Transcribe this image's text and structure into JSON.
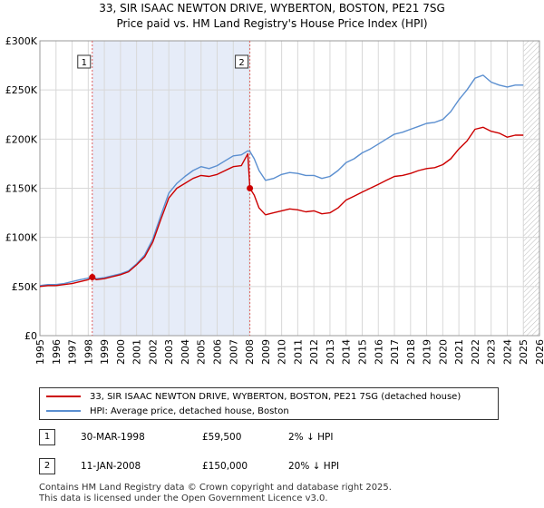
{
  "chart_data": {
    "type": "line",
    "title": "33, SIR ISAAC NEWTON DRIVE, WYBERTON, BOSTON, PE21 7SG",
    "subtitle": "Price paid vs. HM Land Registry's House Price Index (HPI)",
    "xlabel": "",
    "ylabel": "",
    "xlim": [
      1995,
      2026
    ],
    "ylim": [
      0,
      300000
    ],
    "x_ticks": [
      "1995",
      "1996",
      "1997",
      "1998",
      "1999",
      "2000",
      "2001",
      "2002",
      "2003",
      "2004",
      "2005",
      "2006",
      "2007",
      "2008",
      "2009",
      "2010",
      "2011",
      "2012",
      "2013",
      "2014",
      "2015",
      "2016",
      "2017",
      "2018",
      "2019",
      "2020",
      "2021",
      "2022",
      "2023",
      "2024",
      "2025",
      "2026"
    ],
    "y_ticks": [
      {
        "value": 0,
        "label": "£0"
      },
      {
        "value": 50000,
        "label": "£50K"
      },
      {
        "value": 100000,
        "label": "£100K"
      },
      {
        "value": 150000,
        "label": "£150K"
      },
      {
        "value": 200000,
        "label": "£200K"
      },
      {
        "value": 250000,
        "label": "£250K"
      },
      {
        "value": 300000,
        "label": "£300K"
      }
    ],
    "grid": true,
    "shaded_span": {
      "from": 1998.25,
      "to": 2008.03
    },
    "forecast_hatch_from": 2025.0,
    "series": [
      {
        "name": "33, SIR ISAAC NEWTON DRIVE, WYBERTON, BOSTON, PE21 7SG (detached house)",
        "color": "#cc0000",
        "x": [
          1995.0,
          1995.5,
          1996.0,
          1996.5,
          1997.0,
          1997.5,
          1998.0,
          1998.25,
          1998.5,
          1999.0,
          1999.5,
          2000.0,
          2000.5,
          2001.0,
          2001.5,
          2002.0,
          2002.5,
          2003.0,
          2003.5,
          2004.0,
          2004.5,
          2005.0,
          2005.5,
          2006.0,
          2006.5,
          2007.0,
          2007.5,
          2007.9,
          2008.03,
          2008.3,
          2008.6,
          2009.0,
          2009.5,
          2010.0,
          2010.5,
          2011.0,
          2011.5,
          2012.0,
          2012.5,
          2013.0,
          2013.5,
          2014.0,
          2014.5,
          2015.0,
          2015.5,
          2016.0,
          2016.5,
          2017.0,
          2017.5,
          2018.0,
          2018.5,
          2019.0,
          2019.5,
          2020.0,
          2020.5,
          2021.0,
          2021.5,
          2022.0,
          2022.5,
          2023.0,
          2023.5,
          2024.0,
          2024.5,
          2025.0
        ],
        "values": [
          50000,
          51000,
          51000,
          52000,
          53000,
          55000,
          57000,
          59500,
          57000,
          58000,
          60000,
          62000,
          65000,
          72000,
          80000,
          95000,
          118000,
          140000,
          150000,
          155000,
          160000,
          163000,
          162000,
          164000,
          168000,
          172000,
          173000,
          185000,
          150000,
          143000,
          130000,
          123000,
          125000,
          127000,
          129000,
          128000,
          126000,
          127000,
          124000,
          125000,
          130000,
          138000,
          142000,
          146000,
          150000,
          154000,
          158000,
          162000,
          163000,
          165000,
          168000,
          170000,
          171000,
          174000,
          180000,
          190000,
          198000,
          210000,
          212000,
          208000,
          206000,
          202000,
          204000,
          204000
        ]
      },
      {
        "name": "HPI: Average price, detached house, Boston",
        "color": "#5b8fd0",
        "x": [
          1995.0,
          1995.5,
          1996.0,
          1996.5,
          1997.0,
          1997.5,
          1998.0,
          1998.25,
          1998.5,
          1999.0,
          1999.5,
          2000.0,
          2000.5,
          2001.0,
          2001.5,
          2002.0,
          2002.5,
          2003.0,
          2003.5,
          2004.0,
          2004.5,
          2005.0,
          2005.5,
          2006.0,
          2006.5,
          2007.0,
          2007.5,
          2007.9,
          2008.03,
          2008.3,
          2008.6,
          2009.0,
          2009.5,
          2010.0,
          2010.5,
          2011.0,
          2011.5,
          2012.0,
          2012.5,
          2013.0,
          2013.5,
          2014.0,
          2014.5,
          2015.0,
          2015.5,
          2016.0,
          2016.5,
          2017.0,
          2017.5,
          2018.0,
          2018.5,
          2019.0,
          2019.5,
          2020.0,
          2020.5,
          2021.0,
          2021.5,
          2022.0,
          2022.5,
          2023.0,
          2023.5,
          2024.0,
          2024.5,
          2025.0
        ],
        "values": [
          51000,
          52000,
          52000,
          53000,
          55000,
          57000,
          58500,
          60700,
          58000,
          59000,
          61000,
          63000,
          66000,
          73000,
          82000,
          98000,
          122000,
          145000,
          155000,
          162000,
          168000,
          172000,
          170000,
          173000,
          178000,
          183000,
          184000,
          188000,
          187500,
          180000,
          168000,
          158000,
          160000,
          164000,
          166000,
          165000,
          163000,
          163000,
          160000,
          162000,
          168000,
          176000,
          180000,
          186000,
          190000,
          195000,
          200000,
          205000,
          207000,
          210000,
          213000,
          216000,
          217000,
          220000,
          228000,
          240000,
          250000,
          262000,
          265000,
          258000,
          255000,
          253000,
          255000,
          255000
        ]
      }
    ],
    "markers": [
      {
        "label": "1",
        "x": 1998.25,
        "value": 59500
      },
      {
        "label": "2",
        "x": 2008.03,
        "value": 150000
      }
    ]
  },
  "legend": {
    "entries": [
      {
        "label": "33, SIR ISAAC NEWTON DRIVE, WYBERTON, BOSTON, PE21 7SG (detached house)",
        "color": "#cc0000"
      },
      {
        "label": "HPI: Average price, detached house, Boston",
        "color": "#5b8fd0"
      }
    ]
  },
  "sales": [
    {
      "num": "1",
      "date": "30-MAR-1998",
      "price": "£59,500",
      "hpi": "2% ↓ HPI"
    },
    {
      "num": "2",
      "date": "11-JAN-2008",
      "price": "£150,000",
      "hpi": "20% ↓ HPI"
    }
  ],
  "footer": {
    "line1": "Contains HM Land Registry data © Crown copyright and database right 2025.",
    "line2": "This data is licensed under the Open Government Licence v3.0."
  }
}
